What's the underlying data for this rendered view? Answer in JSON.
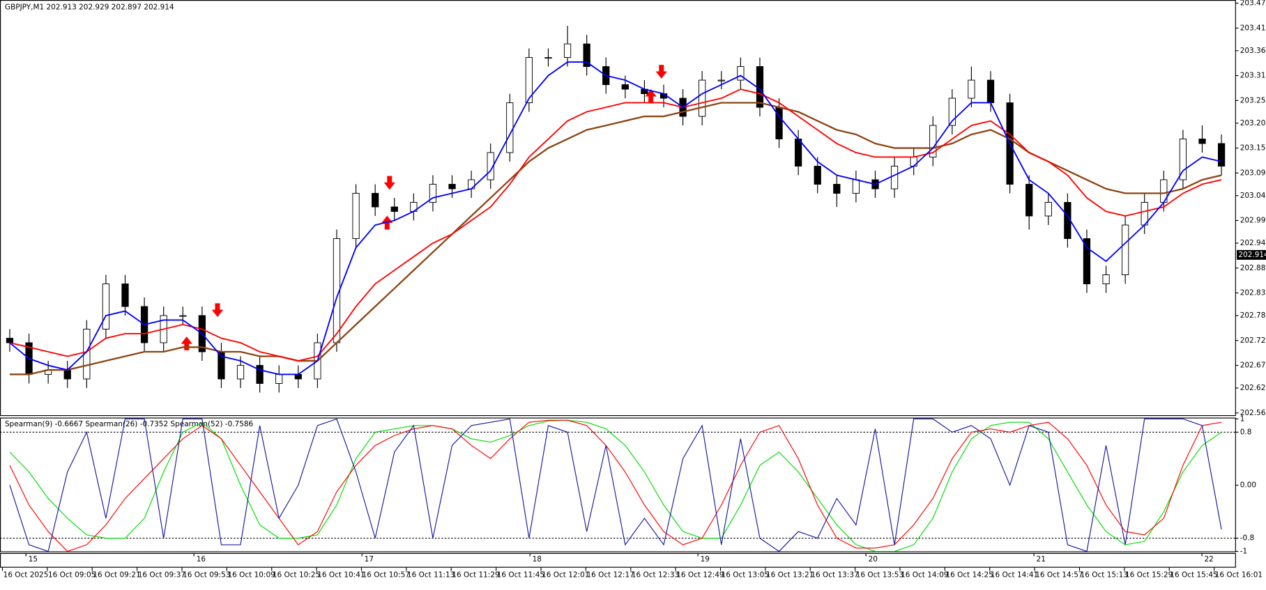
{
  "chart_data": [
    {
      "type": "candlestick",
      "title": "GBPJPY,M1  202.913 202.929 202.897 202.914",
      "open": [
        202.73,
        202.72,
        202.65,
        202.66,
        202.64,
        202.75,
        202.85,
        202.8,
        202.72,
        202.78,
        202.78,
        202.7,
        202.64,
        202.67,
        202.63,
        202.65,
        202.64,
        202.72,
        202.95,
        203.05,
        203.02,
        203.01,
        203.03,
        203.07,
        203.06,
        203.08,
        203.14,
        203.25,
        203.35,
        203.35,
        203.38,
        203.33,
        203.29,
        203.28,
        203.27,
        203.26,
        203.22,
        203.3,
        203.3,
        203.33,
        203.24,
        203.17,
        203.11,
        203.07,
        203.05,
        203.08,
        203.06,
        203.11,
        203.13,
        203.2,
        203.26,
        203.3,
        203.25,
        203.07,
        203.0,
        203.03,
        202.95,
        202.85,
        202.87,
        202.98,
        203.03,
        203.08,
        203.17,
        203.16
      ],
      "high": [
        202.75,
        202.74,
        202.68,
        202.68,
        202.77,
        202.87,
        202.87,
        202.82,
        202.8,
        202.8,
        202.8,
        202.72,
        202.69,
        202.69,
        202.67,
        202.67,
        202.74,
        202.97,
        203.07,
        203.07,
        203.04,
        203.05,
        203.09,
        203.09,
        203.1,
        203.16,
        203.27,
        203.37,
        203.37,
        203.42,
        203.4,
        203.35,
        203.31,
        203.3,
        203.29,
        203.28,
        203.32,
        203.32,
        203.35,
        203.35,
        203.26,
        203.19,
        203.13,
        203.09,
        203.1,
        203.1,
        203.13,
        203.15,
        203.22,
        203.28,
        203.33,
        203.32,
        203.27,
        203.09,
        203.05,
        203.05,
        202.97,
        202.89,
        203.0,
        203.05,
        203.1,
        203.19,
        203.2,
        203.18
      ],
      "low": [
        202.7,
        202.63,
        202.63,
        202.62,
        202.62,
        202.73,
        202.78,
        202.7,
        202.7,
        202.76,
        202.68,
        202.62,
        202.62,
        202.61,
        202.61,
        202.62,
        202.62,
        202.7,
        202.93,
        203.0,
        202.99,
        202.99,
        203.01,
        203.04,
        203.04,
        203.06,
        203.12,
        203.23,
        203.33,
        203.33,
        203.31,
        203.27,
        203.26,
        203.25,
        203.24,
        203.2,
        203.2,
        203.28,
        203.28,
        203.22,
        203.15,
        203.09,
        203.05,
        203.02,
        203.03,
        203.04,
        203.04,
        203.09,
        203.11,
        203.18,
        203.24,
        203.23,
        203.05,
        202.97,
        202.98,
        202.93,
        202.83,
        202.83,
        202.85,
        202.96,
        203.01,
        203.06,
        203.14,
        203.09
      ],
      "close": [
        202.72,
        202.65,
        202.66,
        202.64,
        202.75,
        202.85,
        202.8,
        202.72,
        202.78,
        202.78,
        202.7,
        202.64,
        202.67,
        202.63,
        202.65,
        202.64,
        202.72,
        202.95,
        203.05,
        203.02,
        203.01,
        203.03,
        203.07,
        203.06,
        203.08,
        203.14,
        203.25,
        203.35,
        203.35,
        203.38,
        203.33,
        203.29,
        203.28,
        203.27,
        203.26,
        203.22,
        203.3,
        203.3,
        203.33,
        203.24,
        203.17,
        203.11,
        203.07,
        203.05,
        203.08,
        203.06,
        203.11,
        203.13,
        203.2,
        203.26,
        203.3,
        203.25,
        203.07,
        203.0,
        203.03,
        202.95,
        202.85,
        202.87,
        202.98,
        203.03,
        203.08,
        203.17,
        203.16,
        203.11
      ],
      "series": [
        {
          "color": "#8b4513",
          "values": [
            202.65,
            202.65,
            202.66,
            202.66,
            202.67,
            202.68,
            202.69,
            202.7,
            202.7,
            202.71,
            202.71,
            202.7,
            202.7,
            202.69,
            202.69,
            202.68,
            202.68,
            202.72,
            202.76,
            202.8,
            202.84,
            202.88,
            202.92,
            202.96,
            203.0,
            203.04,
            203.08,
            203.12,
            203.15,
            203.17,
            203.19,
            203.2,
            203.21,
            203.22,
            203.22,
            203.23,
            203.24,
            203.25,
            203.25,
            203.25,
            203.24,
            203.23,
            203.21,
            203.19,
            203.18,
            203.16,
            203.15,
            203.15,
            203.15,
            203.16,
            203.18,
            203.19,
            203.17,
            203.14,
            203.12,
            203.1,
            203.08,
            203.06,
            203.05,
            203.05,
            203.05,
            203.06,
            203.08,
            203.09
          ]
        },
        {
          "color": "#ff0000",
          "values": [
            202.72,
            202.71,
            202.7,
            202.69,
            202.7,
            202.73,
            202.74,
            202.74,
            202.75,
            202.76,
            202.75,
            202.73,
            202.72,
            202.7,
            202.69,
            202.68,
            202.69,
            202.74,
            202.8,
            202.85,
            202.88,
            202.91,
            202.94,
            202.96,
            202.99,
            203.02,
            203.07,
            203.13,
            203.17,
            203.21,
            203.23,
            203.24,
            203.25,
            203.25,
            203.25,
            203.24,
            203.25,
            203.26,
            203.28,
            203.27,
            203.25,
            203.22,
            203.19,
            203.16,
            203.14,
            203.13,
            203.13,
            203.13,
            203.14,
            203.17,
            203.2,
            203.21,
            203.18,
            203.14,
            203.12,
            203.09,
            203.04,
            203.01,
            203.0,
            203.01,
            203.02,
            203.05,
            203.07,
            203.08
          ]
        },
        {
          "color": "#0000ff",
          "values": [
            202.72,
            202.685,
            202.67,
            202.66,
            202.7,
            202.78,
            202.79,
            202.76,
            202.77,
            202.77,
            202.74,
            202.69,
            202.68,
            202.66,
            202.65,
            202.65,
            202.68,
            202.82,
            202.93,
            202.98,
            202.99,
            203.01,
            203.04,
            203.05,
            203.06,
            203.1,
            203.18,
            203.26,
            203.31,
            203.34,
            203.34,
            203.31,
            203.3,
            203.28,
            203.27,
            203.24,
            203.27,
            203.29,
            203.31,
            203.28,
            203.22,
            203.17,
            203.12,
            203.09,
            203.08,
            203.07,
            203.09,
            203.11,
            203.15,
            203.21,
            203.25,
            203.25,
            203.16,
            203.08,
            203.05,
            203.0,
            202.93,
            202.9,
            202.94,
            202.98,
            203.03,
            203.1,
            203.13,
            203.12
          ]
        }
      ],
      "current_price": 202.914,
      "ylim": [
        202.56,
        203.477
      ],
      "yticks": [
        {
          "value": 203.47,
          "label": "203.470"
        },
        203.415,
        203.365,
        {
          "value": 203.31,
          "label": "203.310"
        },
        203.255,
        203.205,
        {
          "value": 203.15,
          "label": "203.150"
        },
        203.095,
        203.045,
        {
          "value": 202.99,
          "label": "202.990"
        },
        {
          "value": 202.94,
          "label": "202.940"
        },
        202.885,
        {
          "value": 202.83,
          "label": "202.830"
        },
        {
          "value": 202.78,
          "label": "202.780"
        },
        202.725,
        {
          "value": 202.67,
          "label": "202.670"
        },
        {
          "value": 202.62,
          "label": "202.620"
        },
        202.565
      ]
    },
    {
      "type": "line",
      "title": "Spearman(9) -0.6667  Spearman(26) -0.7352  Spearman(52) -0.7586",
      "series": [
        {
          "color": "#00dd00",
          "values": [
            0.5,
            0.2,
            -0.2,
            -0.5,
            -0.75,
            -0.8,
            -0.8,
            -0.5,
            0.2,
            0.8,
            0.95,
            0.7,
            0.0,
            -0.6,
            -0.8,
            -0.8,
            -0.75,
            -0.3,
            0.4,
            0.8,
            0.85,
            0.9,
            0.9,
            0.85,
            0.7,
            0.65,
            0.75,
            0.9,
            0.97,
            0.98,
            0.95,
            0.85,
            0.6,
            0.2,
            -0.3,
            -0.7,
            -0.8,
            -0.8,
            -0.3,
            0.3,
            0.5,
            0.2,
            -0.2,
            -0.6,
            -0.9,
            -1.0,
            -1.0,
            -0.9,
            -0.5,
            0.2,
            0.7,
            0.9,
            0.95,
            0.95,
            0.7,
            0.2,
            -0.3,
            -0.7,
            -0.9,
            -0.85,
            -0.4,
            0.2,
            0.6,
            0.8
          ]
        },
        {
          "color": "#ff0000",
          "values": [
            0.3,
            -0.3,
            -0.7,
            -1.0,
            -0.9,
            -0.6,
            -0.2,
            0.1,
            0.4,
            0.7,
            0.9,
            0.7,
            0.3,
            -0.1,
            -0.5,
            -0.9,
            -0.7,
            -0.1,
            0.3,
            0.6,
            0.75,
            0.85,
            0.9,
            0.85,
            0.6,
            0.4,
            0.7,
            0.95,
            0.98,
            0.98,
            0.9,
            0.6,
            0.2,
            -0.3,
            -0.7,
            -0.9,
            -0.8,
            -0.3,
            0.3,
            0.8,
            0.9,
            0.4,
            -0.3,
            -0.8,
            -0.95,
            -0.95,
            -0.9,
            -0.6,
            -0.2,
            0.4,
            0.8,
            0.85,
            0.8,
            0.9,
            0.95,
            0.7,
            0.3,
            -0.3,
            -0.7,
            -0.75,
            -0.5,
            0.3,
            0.9,
            0.95
          ]
        },
        {
          "color": "#1a1aa0",
          "values": [
            0.0,
            -0.9,
            -1.0,
            0.2,
            0.8,
            -0.5,
            1.0,
            1.0,
            -0.8,
            1.0,
            1.0,
            -0.9,
            -0.9,
            0.9,
            -0.5,
            0.0,
            0.9,
            1.0,
            0.2,
            -0.8,
            0.5,
            0.9,
            -0.8,
            0.6,
            0.9,
            0.95,
            1.0,
            -0.8,
            0.9,
            0.8,
            -0.7,
            0.6,
            -0.9,
            -0.5,
            -0.9,
            0.4,
            0.9,
            -0.9,
            0.7,
            -0.8,
            -1.0,
            -0.7,
            -0.8,
            -0.2,
            -0.6,
            0.85,
            -0.9,
            1.0,
            1.0,
            0.8,
            0.9,
            0.7,
            0.0,
            0.9,
            0.8,
            -0.9,
            -1.0,
            0.6,
            -0.9,
            1.0,
            1.0,
            1.0,
            0.9,
            -0.67
          ]
        }
      ],
      "levels": [
        0.8,
        -0.8
      ],
      "ylim": [
        -1.0,
        1.02
      ],
      "yticks": [
        1,
        0.8,
        {
          "value": 0,
          "label": "0.00"
        },
        -0.8,
        -1
      ]
    }
  ],
  "time_axis": {
    "days": [
      "15",
      "16",
      "17",
      "18",
      "19",
      "20",
      "21",
      "22"
    ],
    "times": [
      "16 Oct 2025",
      "16 Oct 09:05",
      "16 Oct 09:21",
      "16 Oct 09:37",
      "16 Oct 09:53",
      "16 Oct 10:09",
      "16 Oct 10:25",
      "16 Oct 10:41",
      "16 Oct 10:57",
      "16 Oct 11:13",
      "16 Oct 11:29",
      "16 Oct 11:45",
      "16 Oct 12:01",
      "16 Oct 12:17",
      "16 Oct 12:33",
      "16 Oct 12:49",
      "16 Oct 13:05",
      "16 Oct 13:21",
      "16 Oct 13:37",
      "16 Oct 13:53",
      "16 Oct 14:09",
      "16 Oct 14:25",
      "16 Oct 14:41",
      "16 Oct 14:57",
      "16 Oct 15:13",
      "16 Oct 15:29",
      "16 Oct 15:45",
      "16 Oct 16:01"
    ]
  }
}
